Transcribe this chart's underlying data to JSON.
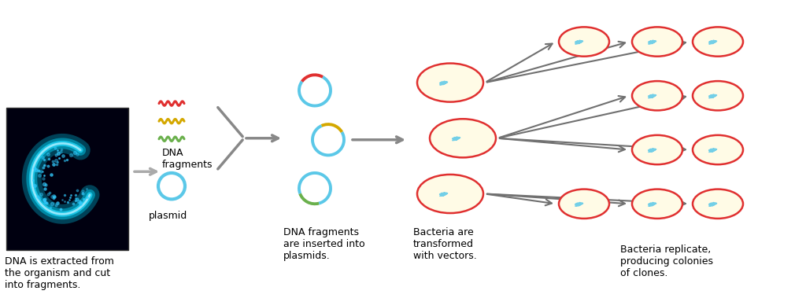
{
  "background_color": "#ffffff",
  "text_color": "#000000",
  "caption1": "DNA is extracted from\nthe organism and cut\ninto fragments.",
  "caption2": "DNA\nfragments",
  "caption3": "plasmid",
  "caption4": "DNA fragments\nare inserted into\nplasmids.",
  "caption5": "Bacteria are\ntransformed\nwith vectors.",
  "caption6": "Bacteria replicate,\nproducing colonies\nof clones.",
  "arrow_color": "#808080",
  "plasmid_color": "#5bc8e8",
  "insert_colors": [
    "#e03030",
    "#d4a800",
    "#6ab04c"
  ],
  "bacteria_fill": "#fffbe6",
  "bacteria_border": "#e03030",
  "dna_color": "#5bc8e8",
  "font_size": 9
}
